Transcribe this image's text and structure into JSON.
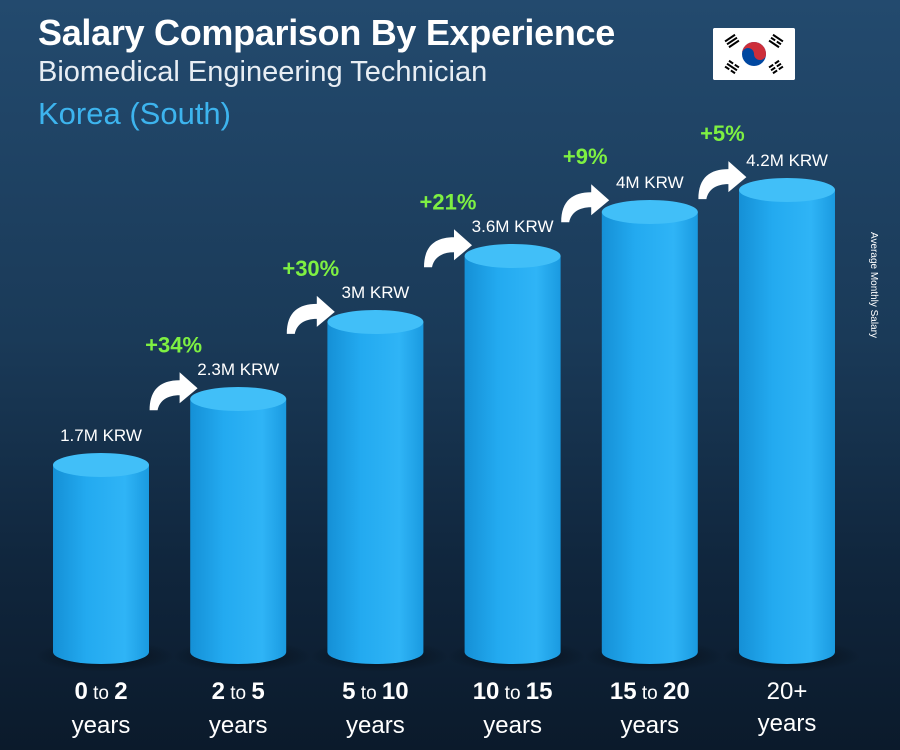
{
  "header": {
    "title": "Salary Comparison By Experience",
    "subtitle": "Biomedical Engineering Technician",
    "location": "Korea (South)"
  },
  "side_label": "Average Monthly Salary",
  "flag_icon": "south-korea-flag-icon",
  "colors": {
    "bar": "#1aa3ec",
    "bar_highlight": "#41bff8",
    "percent": "#7ef042",
    "value_text": "#ffffff"
  },
  "chart_data": {
    "type": "bar",
    "categories": [
      "0 to 2 years",
      "2 to 5 years",
      "5 to 10 years",
      "10 to 15 years",
      "15 to 20 years",
      "20+ years"
    ],
    "category_parts": [
      {
        "a": "0",
        "to": "to",
        "b": "2",
        "unit": "years"
      },
      {
        "a": "2",
        "to": "to",
        "b": "5",
        "unit": "years"
      },
      {
        "a": "5",
        "to": "to",
        "b": "10",
        "unit": "years"
      },
      {
        "a": "10",
        "to": "to",
        "b": "15",
        "unit": "years"
      },
      {
        "a": "15",
        "to": "to",
        "b": "20",
        "unit": "years"
      },
      {
        "a": "20+",
        "to": "",
        "b": "",
        "unit": "years"
      }
    ],
    "values": [
      1.7,
      2.3,
      3.0,
      3.6,
      4.0,
      4.2
    ],
    "value_labels": [
      "1.7M KRW",
      "2.3M KRW",
      "3M KRW",
      "3.6M KRW",
      "4M KRW",
      "4.2M KRW"
    ],
    "unit": "M KRW",
    "increases": [
      "+34%",
      "+30%",
      "+21%",
      "+9%",
      "+5%"
    ],
    "ylabel": "Average Monthly Salary",
    "ylim": [
      0,
      4.6
    ],
    "grid": false,
    "legend": "none"
  }
}
